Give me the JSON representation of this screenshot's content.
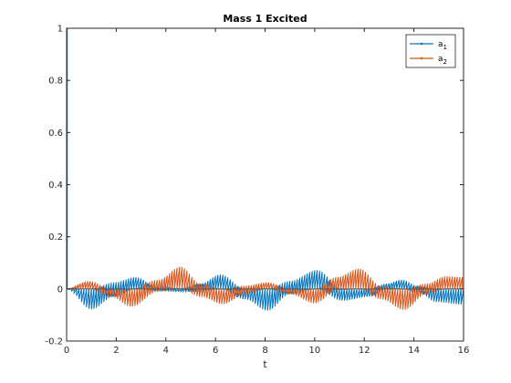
{
  "chart_data": {
    "type": "line",
    "title": "Mass 1 Excited",
    "xlabel": "t",
    "ylabel": "",
    "xlim": [
      0,
      16
    ],
    "ylim": [
      -0.2,
      1
    ],
    "xticks": [
      0,
      2,
      4,
      6,
      8,
      10,
      12,
      14,
      16
    ],
    "yticks": [
      -0.2,
      0,
      0.2,
      0.4,
      0.6,
      0.8,
      1
    ],
    "xtick_labels": [
      "0",
      "2",
      "4",
      "6",
      "8",
      "10",
      "12",
      "14",
      "16"
    ],
    "ytick_labels": [
      "-0.2",
      "0",
      "0.2",
      "0.4",
      "0.6",
      "0.8",
      "1"
    ],
    "grid": true,
    "legend_position": "top-right",
    "series": [
      {
        "name": "a_1",
        "legend_main": "a",
        "legend_sub": "1",
        "color": "#0072BD",
        "initial_spike": 1.0,
        "envelope_t": [
          0,
          1.0,
          1.9,
          2.8,
          3.6,
          4.6,
          5.4,
          6.2,
          7.2,
          8.1,
          9.0,
          10.1,
          11.1,
          12.2,
          12.9,
          13.5,
          14.2,
          14.9,
          16.0
        ],
        "envelope_pos": [
          0.0,
          0.0,
          0.025,
          0.045,
          0.01,
          0.0,
          0.02,
          0.055,
          0.0,
          0.0,
          0.03,
          0.072,
          0.0,
          0.0,
          0.02,
          0.035,
          0.01,
          0.0,
          0.0
        ],
        "envelope_neg": [
          0.0,
          -0.078,
          -0.03,
          0.0,
          -0.005,
          -0.01,
          -0.01,
          0.0,
          -0.04,
          -0.083,
          -0.02,
          0.0,
          -0.045,
          -0.03,
          0.0,
          0.0,
          -0.015,
          -0.05,
          -0.06
        ]
      },
      {
        "name": "a_2",
        "legend_main": "a",
        "legend_sub": "2",
        "color": "#D95319",
        "initial_spike": 0.0,
        "envelope_t": [
          0,
          0.9,
          1.8,
          2.6,
          3.7,
          4.6,
          5.4,
          6.3,
          7.2,
          8.1,
          9.0,
          10.0,
          10.9,
          11.8,
          12.7,
          13.6,
          14.5,
          15.3,
          16.0
        ],
        "envelope_pos": [
          0.0,
          0.03,
          0.0,
          0.0,
          0.035,
          0.085,
          0.02,
          0.0,
          0.012,
          0.025,
          0.0,
          0.0,
          0.045,
          0.078,
          0.01,
          0.0,
          0.02,
          0.048,
          0.045
        ],
        "envelope_neg": [
          0.0,
          0.0,
          -0.03,
          -0.068,
          -0.01,
          0.0,
          -0.03,
          -0.058,
          -0.02,
          0.0,
          -0.02,
          -0.055,
          -0.005,
          0.0,
          -0.04,
          -0.08,
          -0.02,
          0.0,
          0.0
        ]
      }
    ],
    "carrier_period": 0.2
  }
}
